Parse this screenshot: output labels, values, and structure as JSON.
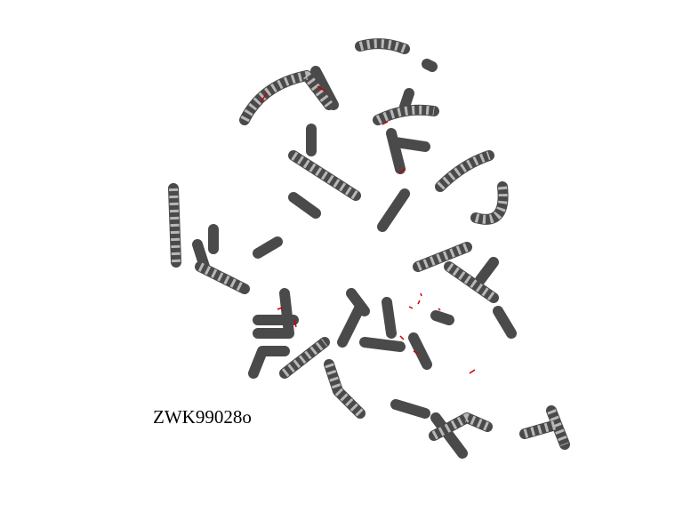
{
  "label": "ZWK99028o"
}
